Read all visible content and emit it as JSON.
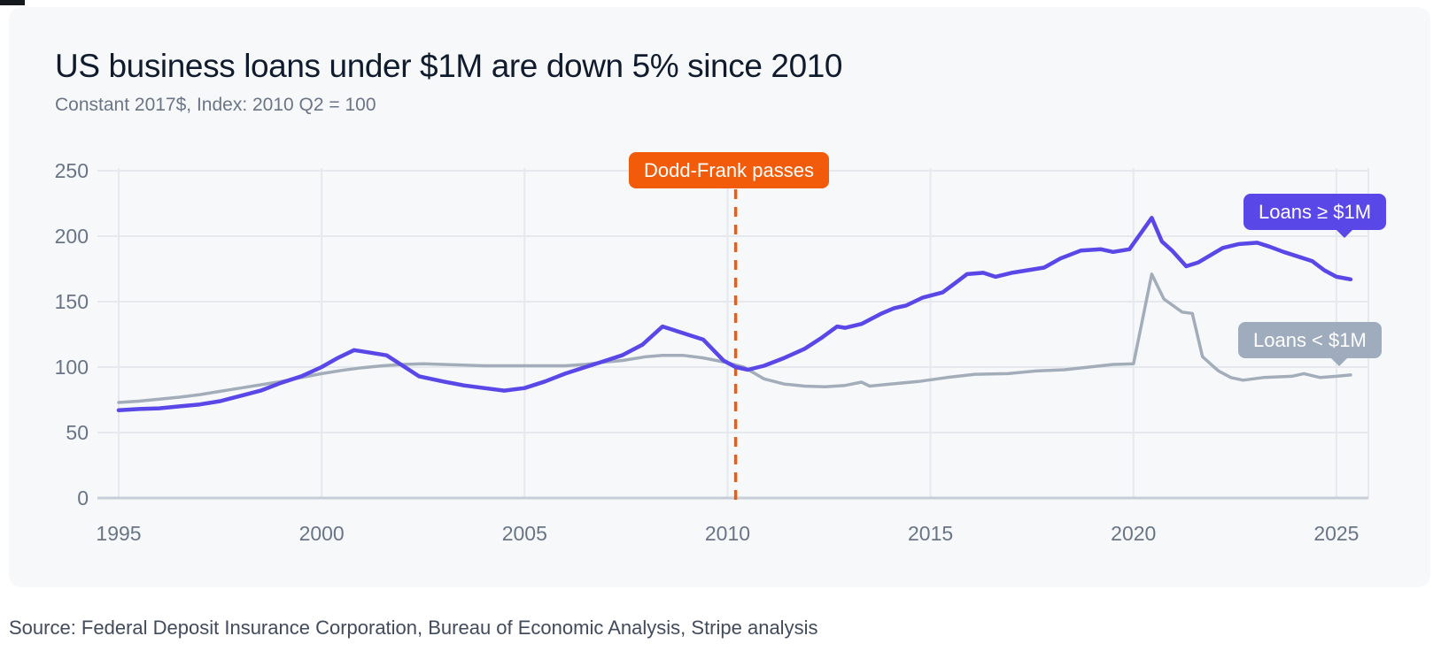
{
  "page": {
    "background": "#ffffff",
    "card_background": "#f6f8fa"
  },
  "header": {
    "title": "US business loans under $1M are down 5% since 2010",
    "subtitle": "Constant 2017$, Index: 2010 Q2 = 100"
  },
  "footer": {
    "source": "Source: Federal Deposit Insurance Corporation, Bureau of Economic Analysis, Stripe analysis"
  },
  "colors": {
    "purple": "#5a47e8",
    "gray_line": "#a3adba",
    "gray_badge": "#9eacbe",
    "orange": "#f25b0a",
    "grid": "#e5e9ee",
    "axis": "#c7ced8",
    "tick_text": "#697586"
  },
  "chart_data": {
    "type": "line",
    "title": "US business loans under $1M are down 5% since 2010",
    "subtitle": "Constant 2017$, Index: 2010 Q2 = 100",
    "xlabel": "",
    "ylabel": "",
    "xlim": [
      1994.45,
      2025.8
    ],
    "ylim": [
      0,
      250
    ],
    "x_ticks": [
      1995,
      2000,
      2005,
      2010,
      2015,
      2020,
      2025
    ],
    "y_ticks": [
      0,
      50,
      100,
      150,
      200,
      250
    ],
    "grid": true,
    "legend_position": "inline-badges",
    "annotation": {
      "label": "Dodd-Frank passes",
      "x": 2010.2,
      "style": "dashed-vertical",
      "color": "#f25b0a"
    },
    "series": [
      {
        "name": "Loans < $1M",
        "badge_label": "Loans < $1M",
        "color": "#a3adba",
        "width": 3.5,
        "points": [
          [
            1995.0,
            73
          ],
          [
            1995.5,
            74
          ],
          [
            1996.0,
            75.5
          ],
          [
            1996.5,
            77
          ],
          [
            1997.0,
            79
          ],
          [
            1997.5,
            81.5
          ],
          [
            1998.0,
            84
          ],
          [
            1998.5,
            86.5
          ],
          [
            1999.0,
            89
          ],
          [
            1999.5,
            92
          ],
          [
            2000.0,
            95
          ],
          [
            2000.5,
            97.5
          ],
          [
            2001.0,
            99.5
          ],
          [
            2001.5,
            101
          ],
          [
            2002.0,
            102
          ],
          [
            2002.5,
            102.5
          ],
          [
            2003.0,
            102
          ],
          [
            2003.5,
            101.5
          ],
          [
            2004.0,
            101
          ],
          [
            2005.0,
            101
          ],
          [
            2006.0,
            101
          ],
          [
            2006.5,
            102
          ],
          [
            2007.0,
            104
          ],
          [
            2007.4,
            105
          ],
          [
            2008.0,
            108
          ],
          [
            2008.4,
            109
          ],
          [
            2008.9,
            109
          ],
          [
            2009.4,
            107
          ],
          [
            2009.9,
            104
          ],
          [
            2010.4,
            100
          ],
          [
            2010.9,
            91
          ],
          [
            2011.4,
            87
          ],
          [
            2011.9,
            85.5
          ],
          [
            2012.4,
            85
          ],
          [
            2012.9,
            86
          ],
          [
            2013.3,
            88.5
          ],
          [
            2013.5,
            85.5
          ],
          [
            2014.0,
            87
          ],
          [
            2014.7,
            89
          ],
          [
            2015.4,
            92
          ],
          [
            2016.1,
            94.5
          ],
          [
            2016.9,
            95
          ],
          [
            2017.6,
            97
          ],
          [
            2018.3,
            98
          ],
          [
            2019.2,
            101
          ],
          [
            2019.5,
            102
          ],
          [
            2020.0,
            102.5
          ],
          [
            2020.45,
            171
          ],
          [
            2020.75,
            152
          ],
          [
            2021.2,
            142
          ],
          [
            2021.45,
            141
          ],
          [
            2021.7,
            108
          ],
          [
            2021.95,
            101
          ],
          [
            2022.1,
            97
          ],
          [
            2022.4,
            92
          ],
          [
            2022.7,
            90
          ],
          [
            2023.2,
            92
          ],
          [
            2023.9,
            93
          ],
          [
            2024.2,
            95
          ],
          [
            2024.6,
            92
          ],
          [
            2025.0,
            93
          ],
          [
            2025.35,
            94
          ]
        ]
      },
      {
        "name": "Loans ≥ $1M",
        "badge_label": "Loans ≥ $1M",
        "color": "#5a47e8",
        "width": 4.5,
        "points": [
          [
            1995.0,
            67
          ],
          [
            1995.5,
            68
          ],
          [
            1996.0,
            68.5
          ],
          [
            1996.5,
            70
          ],
          [
            1997.0,
            71.5
          ],
          [
            1997.5,
            74
          ],
          [
            1998.0,
            78
          ],
          [
            1998.5,
            82
          ],
          [
            1999.0,
            88
          ],
          [
            1999.5,
            93
          ],
          [
            2000.0,
            100
          ],
          [
            2000.4,
            107
          ],
          [
            2000.8,
            113
          ],
          [
            2001.2,
            111
          ],
          [
            2001.6,
            109
          ],
          [
            2002.0,
            101
          ],
          [
            2002.4,
            93
          ],
          [
            2003.0,
            89
          ],
          [
            2003.5,
            86
          ],
          [
            2004.0,
            84
          ],
          [
            2004.5,
            82
          ],
          [
            2005.0,
            84
          ],
          [
            2005.5,
            89
          ],
          [
            2006.0,
            95
          ],
          [
            2006.5,
            100
          ],
          [
            2007.0,
            105
          ],
          [
            2007.4,
            109
          ],
          [
            2007.9,
            117
          ],
          [
            2008.4,
            131
          ],
          [
            2008.9,
            126
          ],
          [
            2009.4,
            121
          ],
          [
            2009.9,
            105
          ],
          [
            2010.2,
            100
          ],
          [
            2010.5,
            98
          ],
          [
            2010.9,
            101
          ],
          [
            2011.4,
            107
          ],
          [
            2011.9,
            114
          ],
          [
            2012.3,
            122
          ],
          [
            2012.7,
            131
          ],
          [
            2012.9,
            130
          ],
          [
            2013.3,
            133
          ],
          [
            2013.8,
            141
          ],
          [
            2014.1,
            145
          ],
          [
            2014.4,
            147
          ],
          [
            2014.8,
            153
          ],
          [
            2015.3,
            157
          ],
          [
            2015.6,
            164
          ],
          [
            2015.9,
            171
          ],
          [
            2016.3,
            172
          ],
          [
            2016.6,
            169
          ],
          [
            2017.0,
            172
          ],
          [
            2017.8,
            176
          ],
          [
            2018.2,
            183
          ],
          [
            2018.7,
            189
          ],
          [
            2019.2,
            190
          ],
          [
            2019.5,
            188
          ],
          [
            2019.9,
            190
          ],
          [
            2020.45,
            214
          ],
          [
            2020.7,
            196
          ],
          [
            2020.95,
            189
          ],
          [
            2021.3,
            177
          ],
          [
            2021.6,
            180
          ],
          [
            2022.2,
            191
          ],
          [
            2022.6,
            194
          ],
          [
            2023.05,
            195
          ],
          [
            2023.35,
            192
          ],
          [
            2023.7,
            188
          ],
          [
            2024.1,
            184
          ],
          [
            2024.4,
            181
          ],
          [
            2024.7,
            174
          ],
          [
            2025.0,
            169
          ],
          [
            2025.35,
            167
          ]
        ]
      }
    ]
  }
}
